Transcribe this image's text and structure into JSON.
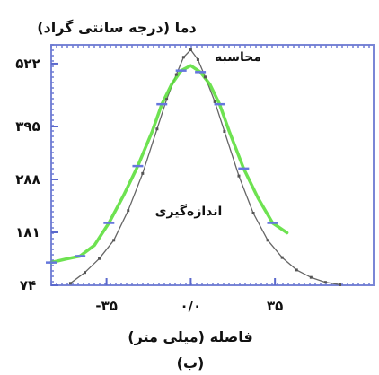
{
  "chart_data": {
    "type": "line",
    "ylabel": "دما (درجه سانتی گراد)",
    "xlabel": "فاصله (میلی متر)",
    "caption": "(ب)",
    "y_ticks": [
      74,
      181,
      288,
      395,
      522
    ],
    "y_tick_labels": [
      "۷۴",
      "۱۸۱",
      "۲۸۸",
      "۳۹۵",
      "۵۲۲"
    ],
    "x_ticks": [
      -35,
      0,
      35
    ],
    "x_tick_labels": [
      "-۳۵",
      "۰/۰",
      "۳۵"
    ],
    "xlim": [
      -58,
      76
    ],
    "ylim": [
      74,
      560
    ],
    "series": [
      {
        "name": "محاسبه",
        "color": "#666666",
        "x": [
          -50,
          -44,
          -38,
          -32,
          -26,
          -20,
          -14,
          -10,
          -6,
          -3,
          0,
          3,
          6,
          10,
          14,
          20,
          26,
          32,
          38,
          44,
          50,
          56,
          62
        ],
        "y": [
          78,
          100,
          128,
          165,
          225,
          300,
          390,
          450,
          500,
          535,
          550,
          530,
          495,
          445,
          385,
          295,
          220,
          165,
          130,
          105,
          90,
          80,
          75
        ]
      },
      {
        "name": "اندازه‌گیری",
        "color": "#55dd33",
        "x": [
          -58,
          -52,
          -46,
          -40,
          -34,
          -28,
          -22,
          -16,
          -12,
          -8,
          -4,
          0,
          4,
          8,
          12,
          16,
          22,
          28,
          34,
          40
        ],
        "y": [
          120,
          127,
          133,
          155,
          200,
          255,
          315,
          385,
          440,
          480,
          508,
          518,
          505,
          480,
          440,
          385,
          310,
          250,
          200,
          180
        ]
      }
    ]
  }
}
